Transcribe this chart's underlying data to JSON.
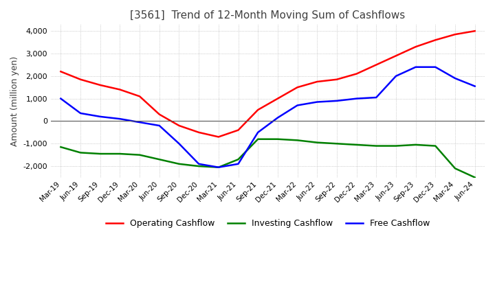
{
  "title": "[3561]  Trend of 12-Month Moving Sum of Cashflows",
  "ylabel": "Amount (million yen)",
  "ylim": [
    -2500,
    4300
  ],
  "yticks": [
    -2000,
    -1000,
    0,
    1000,
    2000,
    3000,
    4000
  ],
  "x_labels": [
    "Mar-19",
    "Jun-19",
    "Sep-19",
    "Dec-19",
    "Mar-20",
    "Jun-20",
    "Sep-20",
    "Dec-20",
    "Mar-21",
    "Jun-21",
    "Sep-21",
    "Dec-21",
    "Mar-22",
    "Jun-22",
    "Sep-22",
    "Dec-22",
    "Mar-23",
    "Jun-23",
    "Sep-23",
    "Dec-23",
    "Mar-24",
    "Jun-24"
  ],
  "operating": [
    2200,
    1850,
    1600,
    1400,
    1100,
    300,
    -200,
    -500,
    -700,
    -400,
    500,
    1000,
    1500,
    1750,
    1850,
    2100,
    2500,
    2900,
    3300,
    3600,
    3850,
    4000
  ],
  "investing": [
    -1150,
    -1400,
    -1450,
    -1450,
    -1500,
    -1700,
    -1900,
    -2000,
    -2050,
    -1700,
    -800,
    -800,
    -850,
    -950,
    -1000,
    -1050,
    -1100,
    -1100,
    -1050,
    -1100,
    -2100,
    -2500
  ],
  "free": [
    1000,
    350,
    200,
    100,
    -50,
    -200,
    -1000,
    -1900,
    -2050,
    -1900,
    -500,
    150,
    700,
    850,
    900,
    1000,
    1050,
    2000,
    2400,
    2400,
    1900,
    1550
  ],
  "operating_color": "#ff0000",
  "investing_color": "#008000",
  "free_color": "#0000ff",
  "background_color": "#ffffff",
  "plot_bg_color": "#ffffff",
  "grid_color": "#aaaaaa",
  "title_color": "#404040",
  "legend_labels": [
    "Operating Cashflow",
    "Investing Cashflow",
    "Free Cashflow"
  ]
}
